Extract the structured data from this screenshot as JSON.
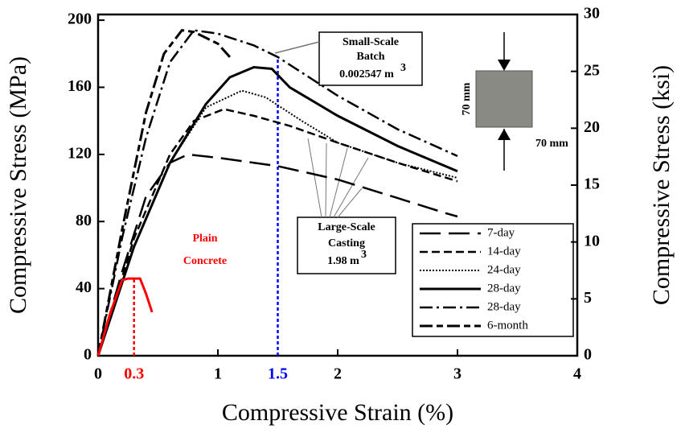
{
  "chart_data": {
    "type": "line",
    "xlabel": "Compressive Strain (%)",
    "ylabel": "Compressive Stress (MPa)",
    "y2label": "Compressive Stress (ksi)",
    "xlim": [
      0,
      4
    ],
    "xticks": [
      0,
      1,
      2,
      3,
      4
    ],
    "ylim": [
      0,
      203.4
    ],
    "yticks": [
      0,
      40,
      80,
      120,
      160,
      200
    ],
    "y2lim": [
      0,
      30
    ],
    "y2ticks": [
      0,
      5,
      10,
      15,
      20,
      25,
      30
    ],
    "series": [
      {
        "name": "7-day",
        "color": "#000",
        "dash": "26,10",
        "width": 2.5,
        "x": [
          0,
          0.2,
          0.4,
          0.6,
          0.75,
          1,
          1.5,
          2,
          2.5,
          2.9,
          3
        ],
        "values": [
          0,
          50,
          95,
          115,
          120,
          118,
          113,
          105,
          94,
          85,
          83
        ]
      },
      {
        "name": "14-day",
        "color": "#000",
        "dash": "10,5",
        "width": 2.5,
        "x": [
          0,
          0.3,
          0.6,
          0.8,
          1.05,
          1.3,
          1.6,
          2,
          2.5,
          3
        ],
        "values": [
          0,
          70,
          120,
          140,
          147,
          143,
          137,
          127,
          115,
          104
        ]
      },
      {
        "name": "24-day",
        "color": "#000",
        "dash": "2,2",
        "width": 2,
        "x": [
          0,
          0.3,
          0.6,
          0.9,
          1.2,
          1.4,
          1.7,
          2,
          2.5,
          3
        ],
        "values": [
          0,
          65,
          115,
          148,
          158,
          154,
          140,
          127,
          115,
          106
        ]
      },
      {
        "name": "28-day",
        "color": "#000",
        "dash": "none",
        "width": 3,
        "x": [
          0,
          0.3,
          0.6,
          0.9,
          1.1,
          1.3,
          1.45,
          1.6,
          2,
          2.5,
          3
        ],
        "values": [
          0,
          65,
          115,
          150,
          166,
          172,
          171,
          160,
          143,
          125,
          110
        ]
      },
      {
        "name": "28-day",
        "color": "#000",
        "dash": "16,5,3,5",
        "width": 2.5,
        "x": [
          0,
          0.2,
          0.4,
          0.6,
          0.8,
          1,
          1.3,
          1.5,
          2,
          2.5,
          3
        ],
        "values": [
          0,
          70,
          130,
          175,
          194,
          192,
          185,
          178,
          155,
          135,
          119
        ]
      },
      {
        "name": "6-month",
        "color": "#000",
        "dash": "16,5,8,5",
        "width": 3,
        "x": [
          0,
          0.2,
          0.4,
          0.55,
          0.7,
          0.8,
          1,
          1.1
        ],
        "values": [
          0,
          75,
          145,
          180,
          194,
          193,
          186,
          178
        ]
      }
    ],
    "plain": {
      "color": "#f00",
      "x": [
        0,
        0.1,
        0.2,
        0.25,
        0.35,
        0.4,
        0.45
      ],
      "values": [
        0,
        25,
        45,
        46,
        46,
        37,
        26
      ],
      "label1": "Plain",
      "label2": "Concrete"
    },
    "markers": [
      {
        "x": 0.3,
        "top": 46,
        "color": "#f00"
      },
      {
        "x": 1.5,
        "top": 178,
        "color": "#00f"
      }
    ],
    "small_box": {
      "line1": "Small-Scale",
      "line2": "Batch",
      "line3": "0.002547 m",
      "sup": "3"
    },
    "large_box": {
      "line1": "Large-Scale",
      "line2": "Casting",
      "line3": "1.98 m",
      "sup": "3"
    },
    "specimen": {
      "height_label": "70 mm",
      "width_label": "70 mm"
    }
  }
}
